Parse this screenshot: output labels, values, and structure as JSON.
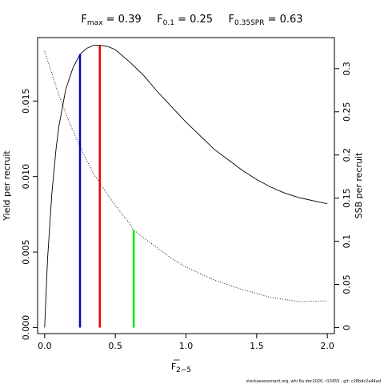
{
  "chart_data": {
    "type": "line",
    "title": {
      "items": [
        {
          "symbol": "F",
          "sub": "max",
          "value": "0.39"
        },
        {
          "symbol": "F",
          "sub": "0.1",
          "value": "0.25"
        },
        {
          "symbol": "F",
          "sub": "0.35SPR",
          "value": "0.63"
        }
      ]
    },
    "xlabel": {
      "symbol": "F",
      "sub": "2−5"
    },
    "ylabel": "Yield per recruit",
    "y2label": "SSB per recruit",
    "xlim": [
      -0.05,
      2.05
    ],
    "ylim": [
      -0.0004,
      0.0192
    ],
    "y2lim": [
      -0.007,
      0.336
    ],
    "xticks": [
      0,
      0.5,
      1.0,
      1.5,
      2.0
    ],
    "xtick_labels": [
      "0.0",
      "0.5",
      "1.0",
      "1.5",
      "2.0"
    ],
    "yticks": [
      0,
      0.005,
      0.01,
      0.015
    ],
    "ytick_labels": [
      "0.000",
      "0.005",
      "0.010",
      "0.015"
    ],
    "y2ticks": [
      0,
      0.05,
      0.1,
      0.15,
      0.2,
      0.25,
      0.3
    ],
    "y2tick_labels": [
      "0",
      "0.05",
      "0.1",
      "0.15",
      "0.2",
      "0.25",
      "0.3"
    ],
    "series": [
      {
        "axis": "left",
        "style": "solid",
        "color": "#000000",
        "x": [
          0,
          0.02,
          0.05,
          0.08,
          0.1,
          0.15,
          0.2,
          0.25,
          0.3,
          0.35,
          0.39,
          0.45,
          0.5,
          0.6,
          0.7,
          0.8,
          0.9,
          1.0,
          1.1,
          1.2,
          1.3,
          1.4,
          1.5,
          1.6,
          1.7,
          1.8,
          1.9,
          2.0
        ],
        "y": [
          0,
          0.0045,
          0.0088,
          0.0118,
          0.0133,
          0.0158,
          0.0172,
          0.0181,
          0.0185,
          0.0187,
          0.0187,
          0.0186,
          0.0184,
          0.0176,
          0.0167,
          0.0156,
          0.0146,
          0.0136,
          0.0127,
          0.0118,
          0.0111,
          0.0104,
          0.0098,
          0.0093,
          0.0089,
          0.0086,
          0.0084,
          0.0082
        ]
      },
      {
        "axis": "right",
        "style": "dotted",
        "color": "#000000",
        "x": [
          0,
          0.05,
          0.1,
          0.15,
          0.2,
          0.25,
          0.3,
          0.35,
          0.4,
          0.5,
          0.6,
          0.63,
          0.7,
          0.8,
          0.9,
          1.0,
          1.2,
          1.4,
          1.6,
          1.8,
          2.0
        ],
        "y": [
          0.32,
          0.295,
          0.27,
          0.248,
          0.228,
          0.21,
          0.193,
          0.177,
          0.165,
          0.141,
          0.121,
          0.113,
          0.104,
          0.092,
          0.08,
          0.07,
          0.055,
          0.044,
          0.035,
          0.03,
          0.031
        ]
      }
    ],
    "reference_lines": [
      {
        "x": 0.25,
        "color": "#0000cc",
        "top": 0.0181,
        "axis": "left"
      },
      {
        "x": 0.39,
        "color": "#ee0000",
        "top": 0.0187,
        "axis": "left"
      },
      {
        "x": 0.63,
        "color": "#00ee00",
        "top": 0.113,
        "axis": "right"
      }
    ],
    "footer": "stockassessment.org, whi 6a dec2020, r13455 , git: c28bdc2a44ad"
  }
}
